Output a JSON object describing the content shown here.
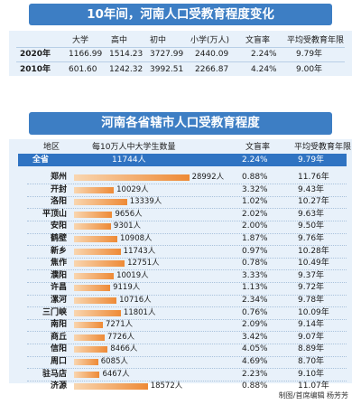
{
  "summary": {
    "title": "10年间，河南人口受教育程度变化",
    "headers": [
      "大学",
      "高中",
      "初中",
      "小学(万人)",
      "文盲率",
      "平均受教育年限"
    ],
    "rows": [
      {
        "year": "2020年",
        "values": [
          "1166.99",
          "1514.23",
          "3727.99",
          "2440.09",
          "2.24%",
          "9.79年"
        ]
      },
      {
        "year": "2010年",
        "values": [
          "601.60",
          "1242.32",
          "3992.51",
          "2266.87",
          "4.24%",
          "9.00年"
        ]
      }
    ]
  },
  "regions": {
    "title": "河南各省辖市人口受教育程度",
    "headers": {
      "region": "地区",
      "college": "每10万人中大学生数量",
      "illiteracy": "文盲率",
      "years": "平均受教育年限"
    },
    "total": {
      "name": "全省",
      "college": "11744人",
      "illiteracy": "2.24%",
      "years": "9.79年"
    }
  },
  "chart_data": {
    "type": "bar",
    "title": "河南各省辖市人口受教育程度",
    "xlabel": "每10万人中大学生数量",
    "categories": [
      "郑州",
      "开封",
      "洛阳",
      "平顶山",
      "安阳",
      "鹤壁",
      "新乡",
      "焦作",
      "濮阳",
      "许昌",
      "漯河",
      "三门峡",
      "南阳",
      "商丘",
      "信阳",
      "周口",
      "驻马店",
      "济源"
    ],
    "values": [
      28992,
      10029,
      13339,
      9656,
      9301,
      10908,
      11743,
      12751,
      10019,
      9119,
      10716,
      11801,
      7271,
      7726,
      8466,
      6085,
      6467,
      18572
    ],
    "value_labels": [
      "28992人",
      "10029人",
      "13339人",
      "9656人",
      "9301人",
      "10908人",
      "11743人",
      "12751人",
      "10019人",
      "9119人",
      "10716人",
      "11801人",
      "7271人",
      "7726人",
      "8466人",
      "6085人",
      "6467人",
      "18572人"
    ],
    "illiteracy": [
      "0.88%",
      "3.32%",
      "1.02%",
      "2.02%",
      "2.00%",
      "1.87%",
      "0.97%",
      "0.78%",
      "3.33%",
      "1.13%",
      "2.34%",
      "0.76%",
      "2.09%",
      "3.42%",
      "4.05%",
      "4.69%",
      "2.23%",
      "0.88%"
    ],
    "avg_years": [
      "11.76年",
      "9.43年",
      "10.27年",
      "9.63年",
      "9.50年",
      "9.76年",
      "10.28年",
      "10.49年",
      "9.37年",
      "9.72年",
      "9.78年",
      "10.09年",
      "9.14年",
      "9.07年",
      "8.89年",
      "8.70年",
      "9.10年",
      "11.07年"
    ],
    "colors": {
      "bar_start": "#f9d6b0",
      "bar_end": "#ee8a36",
      "header": "#3d7ec4",
      "total_row": "#2f73c2",
      "panel": "#e8f1fa"
    }
  },
  "credit": "制图/首席编辑  杨芳芳"
}
